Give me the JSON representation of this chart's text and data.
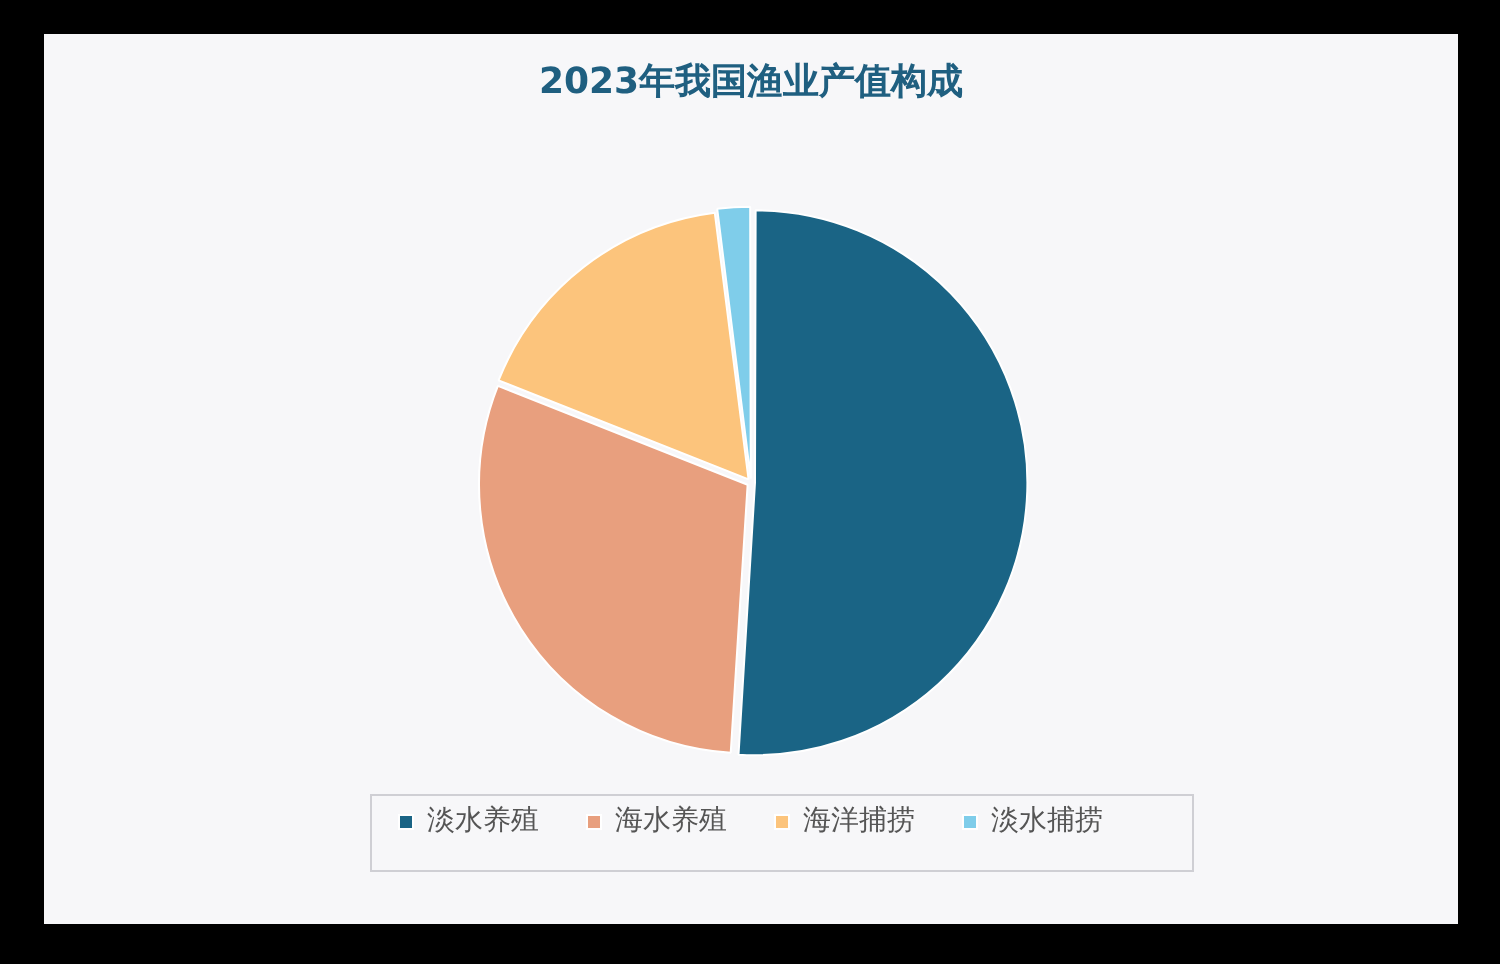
{
  "chart_data": {
    "type": "pie",
    "title": "2023年我国渔业产值构成",
    "categories": [
      "淡水养殖",
      "海水养殖",
      "海洋捕捞",
      "淡水捕捞"
    ],
    "values": [
      51,
      30,
      17,
      2
    ],
    "colors": [
      "#1a6485",
      "#e89f7e",
      "#fcc47c",
      "#7fcdea"
    ],
    "legend": "bottom"
  }
}
